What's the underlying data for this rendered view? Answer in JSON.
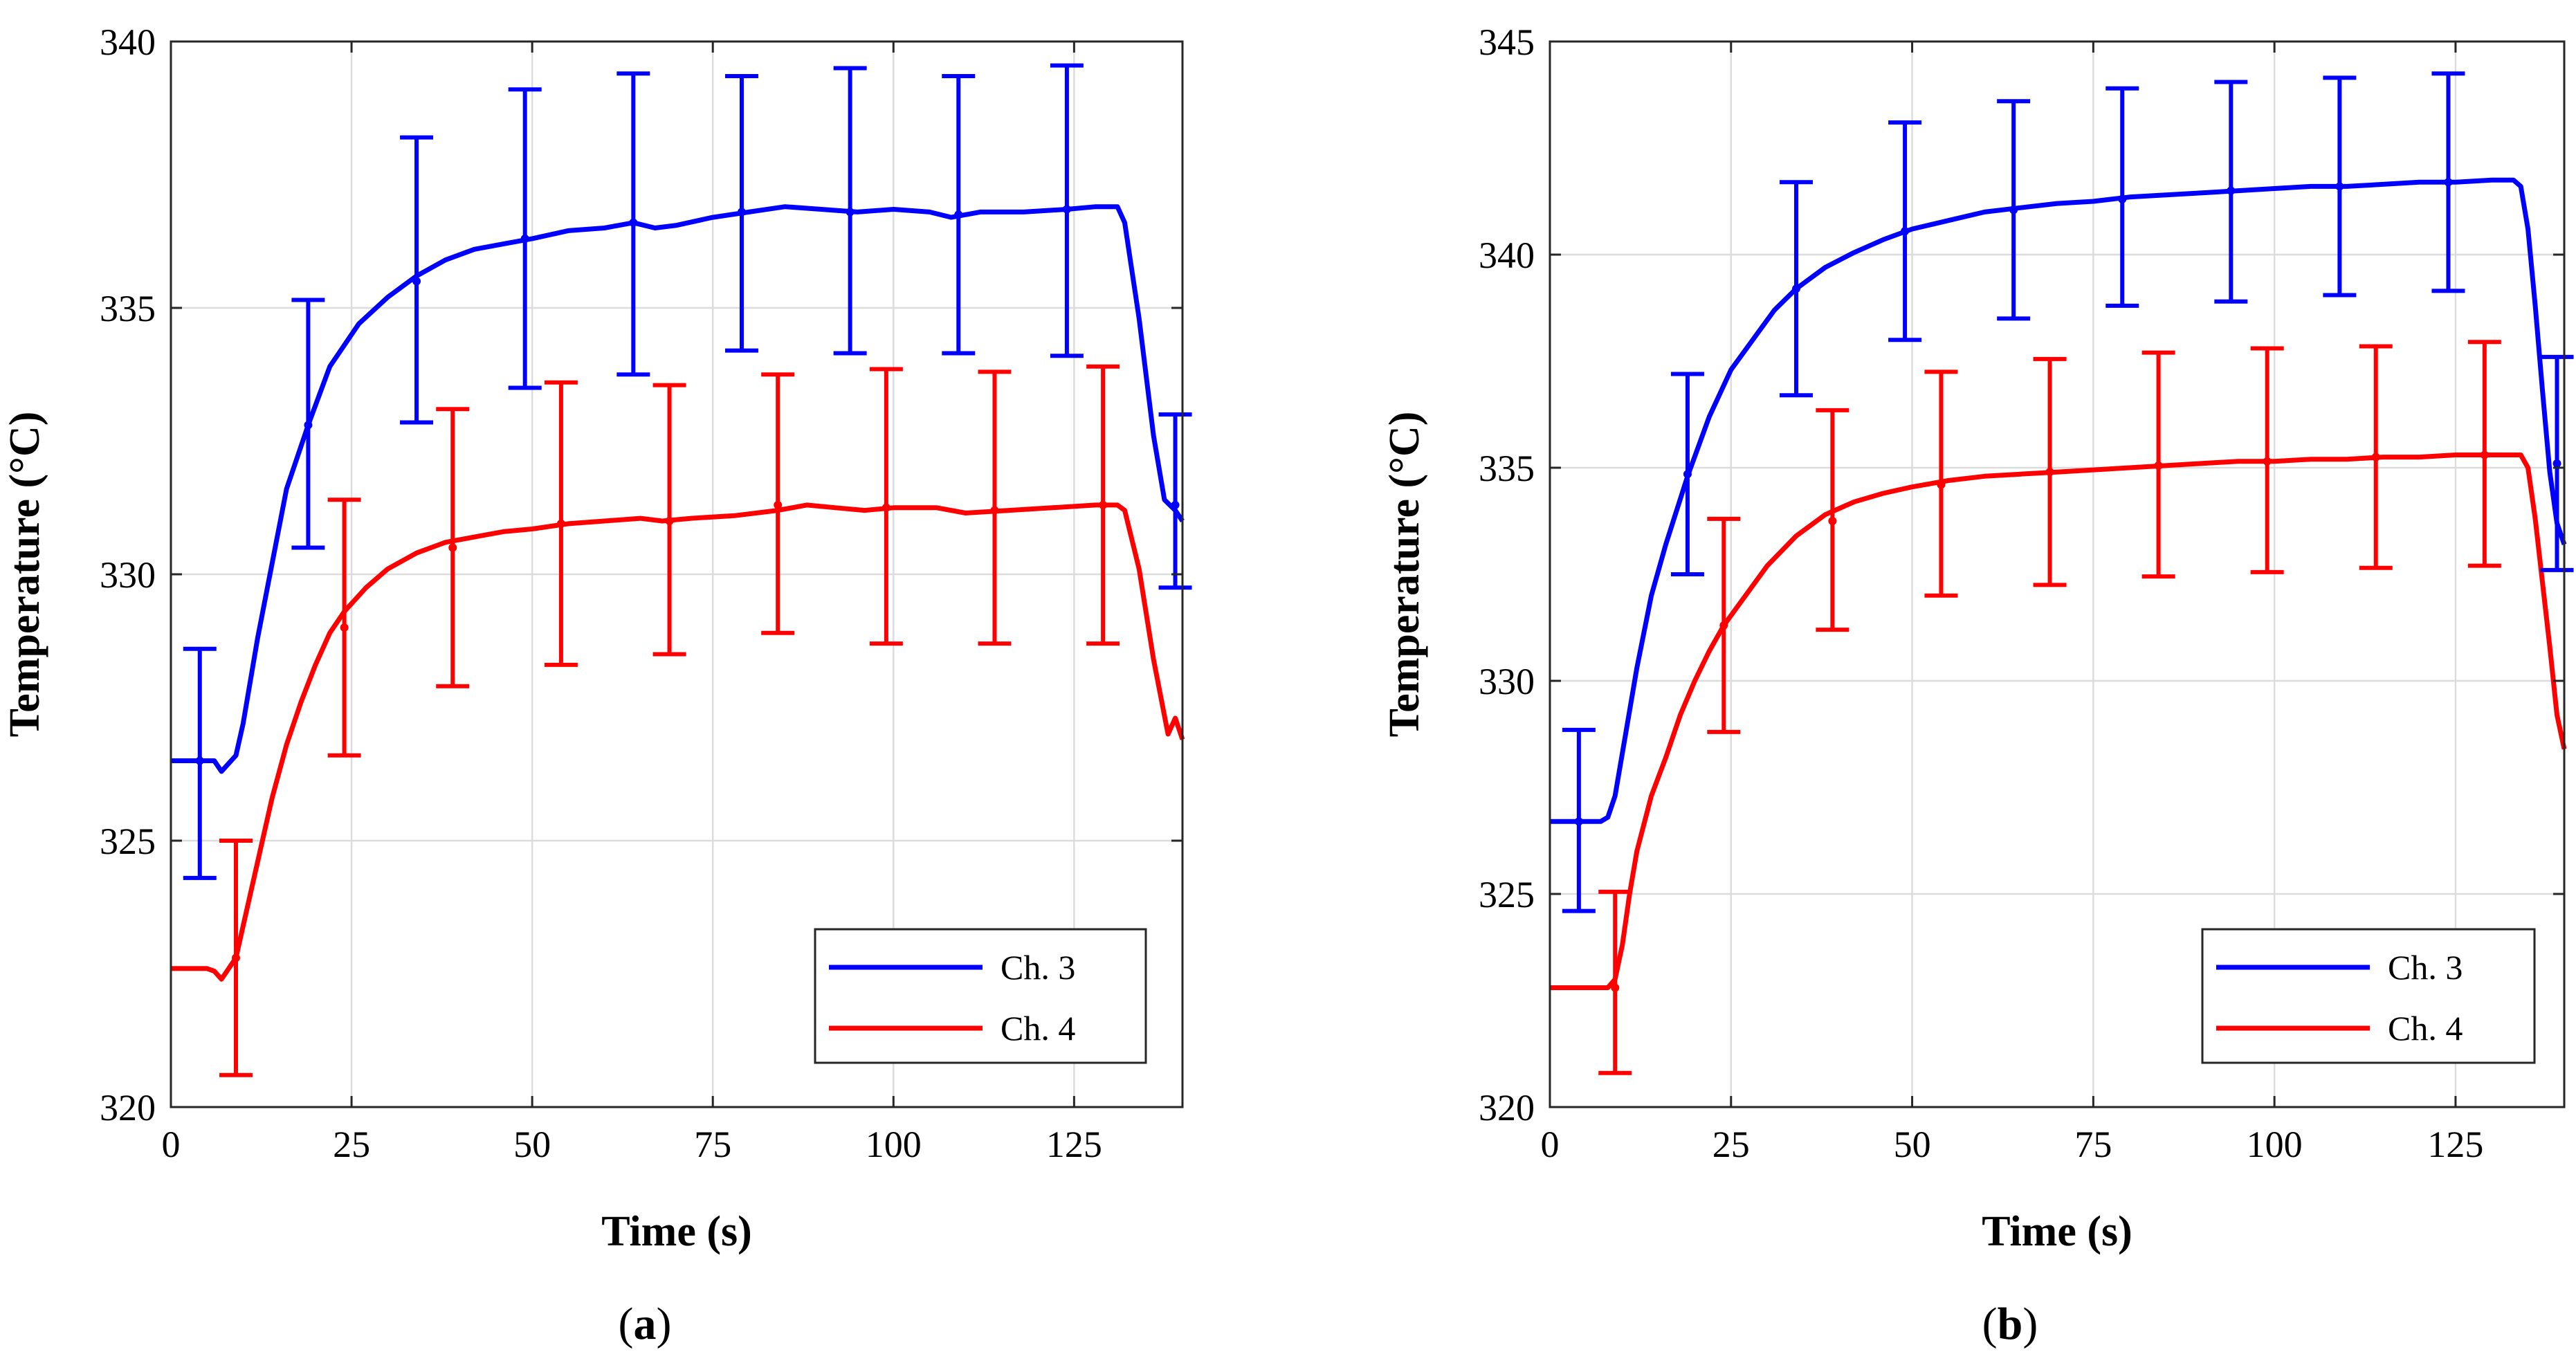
{
  "chart_data": [
    {
      "type": "line",
      "panel_id": "a",
      "caption": {
        "open": "(",
        "letter": "a",
        "close": ")"
      },
      "title": "",
      "xlabel": "Time (s)",
      "ylabel": "Temperature (°C)",
      "xlim": [
        0,
        140
      ],
      "ylim": [
        320,
        340
      ],
      "xticks": [
        0,
        25,
        50,
        75,
        100,
        125
      ],
      "yticks": [
        320,
        325,
        330,
        335,
        340
      ],
      "grid": true,
      "legend_position": "bottom-right",
      "series": [
        {
          "name": "Ch. 3",
          "color": "#0000ff",
          "x": [
            0,
            4,
            6,
            7,
            9,
            10,
            12,
            14,
            16,
            19,
            22,
            26,
            30,
            34,
            38,
            42,
            46,
            50,
            55,
            60,
            64,
            67,
            70,
            75,
            80,
            85,
            90,
            95,
            100,
            105,
            108,
            112,
            118,
            124,
            128,
            131,
            132,
            134,
            136,
            137.5,
            139,
            140
          ],
          "y": [
            326.5,
            326.5,
            326.5,
            326.3,
            326.6,
            327.2,
            328.8,
            330.2,
            331.6,
            332.8,
            333.9,
            334.7,
            335.2,
            335.6,
            335.9,
            336.1,
            336.2,
            336.3,
            336.45,
            336.5,
            336.6,
            336.5,
            336.55,
            336.7,
            336.8,
            336.9,
            336.85,
            336.8,
            336.85,
            336.8,
            336.7,
            336.8,
            336.8,
            336.85,
            336.9,
            336.9,
            336.6,
            334.8,
            332.6,
            331.4,
            331.2,
            331.0
          ],
          "errorbars": {
            "x": [
              4,
              19,
              34,
              49,
              64,
              79,
              94,
              109,
              124,
              139
            ],
            "y": [
              326.5,
              332.8,
              335.5,
              336.3,
              336.6,
              336.8,
              336.8,
              336.75,
              336.85,
              331.3
            ],
            "lower": [
              324.3,
              330.5,
              332.85,
              333.5,
              333.75,
              334.2,
              334.15,
              334.15,
              334.1,
              329.75
            ],
            "upper": [
              328.6,
              335.15,
              338.2,
              339.1,
              339.4,
              339.35,
              339.5,
              339.35,
              339.55,
              333.0
            ]
          }
        },
        {
          "name": "Ch. 4",
          "color": "#ff0000",
          "x": [
            0,
            5,
            6,
            7,
            8,
            9,
            10,
            12,
            14,
            16,
            18,
            20,
            22,
            24,
            27,
            30,
            34,
            38,
            42,
            46,
            50,
            55,
            60,
            65,
            68,
            72,
            78,
            84,
            88,
            92,
            96,
            100,
            106,
            110,
            116,
            122,
            128,
            130,
            131,
            132,
            134,
            136,
            138,
            139,
            140
          ],
          "y": [
            322.6,
            322.6,
            322.55,
            322.4,
            322.6,
            322.8,
            323.4,
            324.6,
            325.8,
            326.8,
            327.6,
            328.3,
            328.9,
            329.3,
            329.75,
            330.1,
            330.4,
            330.6,
            330.7,
            330.8,
            330.85,
            330.95,
            331.0,
            331.05,
            331.0,
            331.05,
            331.1,
            331.2,
            331.3,
            331.25,
            331.2,
            331.25,
            331.25,
            331.15,
            331.2,
            331.25,
            331.3,
            331.3,
            331.3,
            331.2,
            330.1,
            328.4,
            327.0,
            327.3,
            326.9
          ],
          "errorbars": {
            "x": [
              9,
              24,
              39,
              54,
              69,
              84,
              99,
              114,
              129
            ],
            "y": [
              322.8,
              329.0,
              330.5,
              330.95,
              331.0,
              331.3,
              331.25,
              331.2,
              331.3
            ],
            "lower": [
              320.6,
              326.6,
              327.9,
              328.3,
              328.5,
              328.9,
              328.7,
              328.7,
              328.7
            ],
            "upper": [
              325.0,
              331.4,
              333.1,
              333.6,
              333.55,
              333.75,
              333.85,
              333.8,
              333.9
            ]
          }
        }
      ]
    },
    {
      "type": "line",
      "panel_id": "b",
      "caption": {
        "open": "(",
        "letter": "b",
        "close": ")"
      },
      "title": "",
      "xlabel": "Time (s)",
      "ylabel": "Temperature (°C)",
      "xlim": [
        0,
        140
      ],
      "ylim": [
        320,
        345
      ],
      "xticks": [
        0,
        25,
        50,
        75,
        100,
        125
      ],
      "yticks": [
        320,
        325,
        330,
        335,
        340,
        345
      ],
      "grid": true,
      "legend_position": "bottom-right",
      "series": [
        {
          "name": "Ch. 3",
          "color": "#0000ff",
          "x": [
            0,
            4,
            7,
            8,
            9,
            10,
            12,
            14,
            16,
            19,
            22,
            25,
            28,
            31,
            34,
            38,
            42,
            46,
            50,
            55,
            60,
            65,
            70,
            75,
            80,
            85,
            90,
            95,
            100,
            105,
            110,
            115,
            120,
            125,
            130,
            133,
            134,
            135,
            136,
            137,
            138,
            139,
            140
          ],
          "y": [
            326.7,
            326.7,
            326.7,
            326.8,
            327.3,
            328.3,
            330.3,
            332.0,
            333.2,
            334.8,
            336.2,
            337.3,
            338.0,
            338.7,
            339.2,
            339.7,
            340.05,
            340.35,
            340.6,
            340.8,
            341.0,
            341.1,
            341.2,
            341.25,
            341.35,
            341.4,
            341.45,
            341.5,
            341.55,
            341.6,
            341.6,
            341.65,
            341.7,
            341.7,
            341.75,
            341.75,
            341.6,
            340.6,
            338.8,
            336.8,
            334.9,
            333.7,
            333.2
          ],
          "errorbars": {
            "x": [
              4,
              19,
              34,
              49,
              64,
              79,
              94,
              109,
              124,
              139
            ],
            "y": [
              326.7,
              334.85,
              339.2,
              340.55,
              341.05,
              341.3,
              341.5,
              341.6,
              341.7,
              335.1
            ],
            "lower": [
              324.6,
              332.5,
              336.7,
              338.0,
              338.5,
              338.8,
              338.9,
              339.05,
              339.15,
              332.6
            ],
            "upper": [
              328.85,
              337.2,
              341.7,
              343.1,
              343.6,
              343.9,
              344.05,
              344.15,
              344.25,
              337.6
            ]
          }
        },
        {
          "name": "Ch. 4",
          "color": "#ff0000",
          "x": [
            0,
            5,
            8,
            9,
            10,
            11,
            12,
            14,
            16,
            18,
            20,
            22,
            24,
            27,
            30,
            34,
            38,
            42,
            46,
            50,
            55,
            60,
            65,
            70,
            75,
            80,
            85,
            90,
            95,
            100,
            105,
            110,
            115,
            120,
            125,
            130,
            134,
            135,
            136,
            137,
            138,
            139,
            140
          ],
          "y": [
            322.8,
            322.8,
            322.8,
            323.0,
            323.8,
            325.0,
            326.0,
            327.3,
            328.2,
            329.2,
            330.0,
            330.7,
            331.3,
            332.0,
            332.7,
            333.4,
            333.9,
            334.2,
            334.4,
            334.55,
            334.7,
            334.8,
            334.85,
            334.9,
            334.95,
            335.0,
            335.05,
            335.1,
            335.15,
            335.15,
            335.2,
            335.2,
            335.25,
            335.25,
            335.3,
            335.3,
            335.3,
            335.0,
            333.8,
            332.3,
            330.8,
            329.2,
            328.4
          ],
          "errorbars": {
            "x": [
              9,
              24,
              39,
              54,
              69,
              84,
              99,
              114,
              129
            ],
            "y": [
              322.8,
              331.3,
              333.75,
              334.6,
              334.9,
              335.05,
              335.15,
              335.25,
              335.3
            ],
            "lower": [
              320.8,
              328.8,
              331.2,
              332.0,
              332.25,
              332.45,
              332.55,
              332.65,
              332.7
            ],
            "upper": [
              325.05,
              333.8,
              336.35,
              337.25,
              337.55,
              337.7,
              337.8,
              337.85,
              337.95
            ]
          }
        }
      ]
    }
  ]
}
